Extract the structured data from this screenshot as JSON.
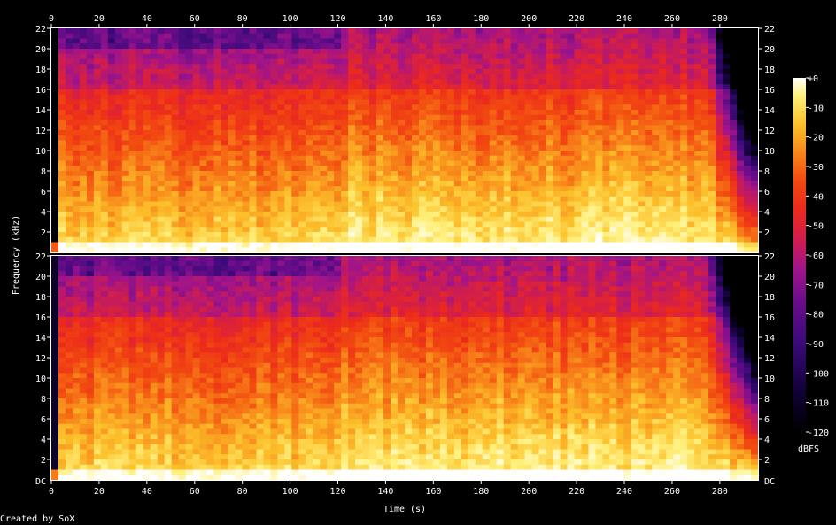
{
  "chart_data": {
    "type": "heatmap",
    "title": "",
    "xlabel": "Time (s)",
    "ylabel": "Frequency (kHz)",
    "x_ticks": [
      0,
      20,
      40,
      60,
      80,
      100,
      120,
      140,
      160,
      180,
      200,
      220,
      240,
      260,
      280
    ],
    "x_range": [
      0,
      296
    ],
    "y_range": [
      0,
      22
    ],
    "y_ticks": [
      2,
      4,
      6,
      8,
      10,
      12,
      14,
      16,
      18,
      20,
      22
    ],
    "y_bottom_label": "DC",
    "channels": 2,
    "colorbar": {
      "label": "dBFS",
      "ticks": [
        "+0",
        "-10",
        "-20",
        "-30",
        "-40",
        "-50",
        "-60",
        "-70",
        "-80",
        "-90",
        "-100",
        "-110",
        "-120"
      ],
      "range": [
        -120,
        0
      ]
    },
    "segments": [
      {
        "start_s": 0,
        "end_s": 120,
        "cutoff_khz": 20,
        "level": "loud"
      },
      {
        "start_s": 120,
        "end_s": 296,
        "cutoff_khz": 22,
        "level": "louder"
      },
      {
        "fade_out_start_s": 275,
        "end_s": 296
      }
    ]
  },
  "footer": {
    "credit": "Created by SoX"
  },
  "colors": {
    "background": "#000000",
    "axis": "#ffffff",
    "palette": [
      "#000000",
      "#12013a",
      "#3a0a78",
      "#6a0d8a",
      "#a1148a",
      "#d21e4a",
      "#ec2a1c",
      "#f24a10",
      "#f8871a",
      "#fcc12c",
      "#fff07c",
      "#ffffff"
    ]
  }
}
